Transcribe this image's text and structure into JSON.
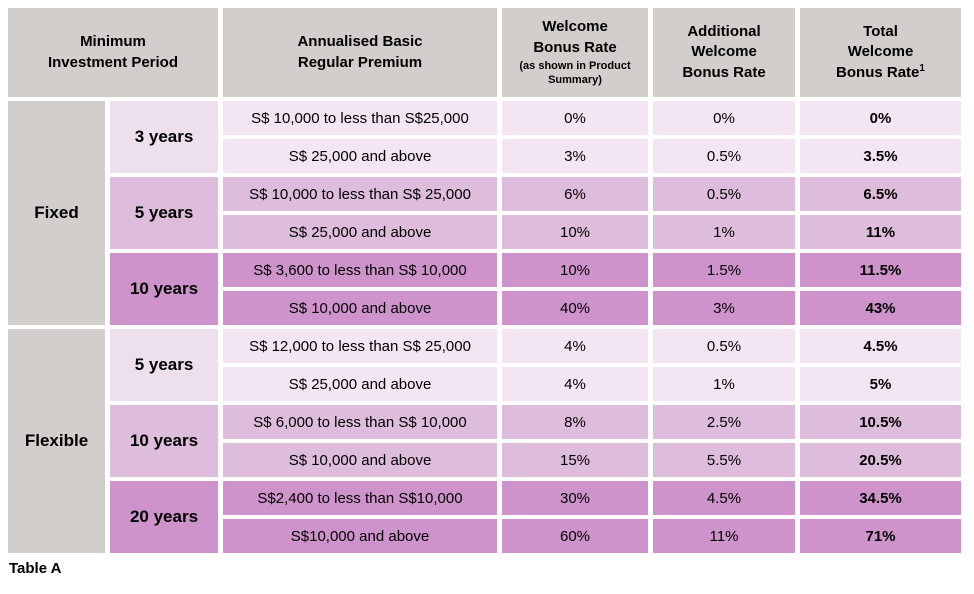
{
  "header": {
    "min_investment_period": "Minimum\nInvestment Period",
    "premium": "Annualised Basic\nRegular Premium",
    "welcome_rate_title": "Welcome\nBonus Rate",
    "welcome_rate_note": "(as shown in Product\nSummary)",
    "additional_rate": "Additional\nWelcome\nBonus Rate",
    "total_rate_lines": "Total\nWelcome",
    "total_rate_last_line": "Bonus Rate",
    "total_rate_superscript": "1"
  },
  "table": {
    "caption": "Table A",
    "sections": [
      {
        "type": "Fixed",
        "groups": [
          {
            "years": "3 years",
            "shade": "light",
            "rows": [
              {
                "premium": "S$ 10,000 to less than S$25,000",
                "welcome": "0%",
                "additional": "0%",
                "total": "0%"
              },
              {
                "premium": "S$ 25,000 and above",
                "welcome": "3%",
                "additional": "0.5%",
                "total": "3.5%"
              }
            ]
          },
          {
            "years": "5 years",
            "shade": "medium",
            "rows": [
              {
                "premium": "S$ 10,000 to less than S$ 25,000",
                "welcome": "6%",
                "additional": "0.5%",
                "total": "6.5%"
              },
              {
                "premium": "S$ 25,000 and above",
                "welcome": "10%",
                "additional": "1%",
                "total": "11%"
              }
            ]
          },
          {
            "years": "10 years",
            "shade": "dark",
            "rows": [
              {
                "premium": "S$ 3,600 to less than S$ 10,000",
                "welcome": "10%",
                "additional": "1.5%",
                "total": "11.5%"
              },
              {
                "premium": "S$ 10,000 and above",
                "welcome": "40%",
                "additional": "3%",
                "total": "43%"
              }
            ]
          }
        ]
      },
      {
        "type": "Flexible",
        "groups": [
          {
            "years": "5 years",
            "shade": "light",
            "rows": [
              {
                "premium": "S$ 12,000 to less than S$ 25,000",
                "welcome": "4%",
                "additional": "0.5%",
                "total": "4.5%"
              },
              {
                "premium": "S$ 25,000 and above",
                "welcome": "4%",
                "additional": "1%",
                "total": "5%"
              }
            ]
          },
          {
            "years": "10 years",
            "shade": "medium",
            "rows": [
              {
                "premium": "S$ 6,000 to less than S$ 10,000",
                "welcome": "8%",
                "additional": "2.5%",
                "total": "10.5%"
              },
              {
                "premium": "S$ 10,000 and above",
                "welcome": "15%",
                "additional": "5.5%",
                "total": "20.5%"
              }
            ]
          },
          {
            "years": "20 years",
            "shade": "dark",
            "rows": [
              {
                "premium": "S$2,400 to less than S$10,000",
                "welcome": "30%",
                "additional": "4.5%",
                "total": "34.5%"
              },
              {
                "premium": "S$10,000 and above",
                "welcome": "60%",
                "additional": "11%",
                "total": "71%"
              }
            ]
          }
        ]
      }
    ],
    "colors": {
      "header_bg": "#d1cecc",
      "section_bg": "#d1cecc",
      "group_light_label": "#eedfed",
      "group_light_row": "#f3e6f2",
      "group_medium": "#debcdb",
      "group_dark": "#cf93cb"
    }
  }
}
